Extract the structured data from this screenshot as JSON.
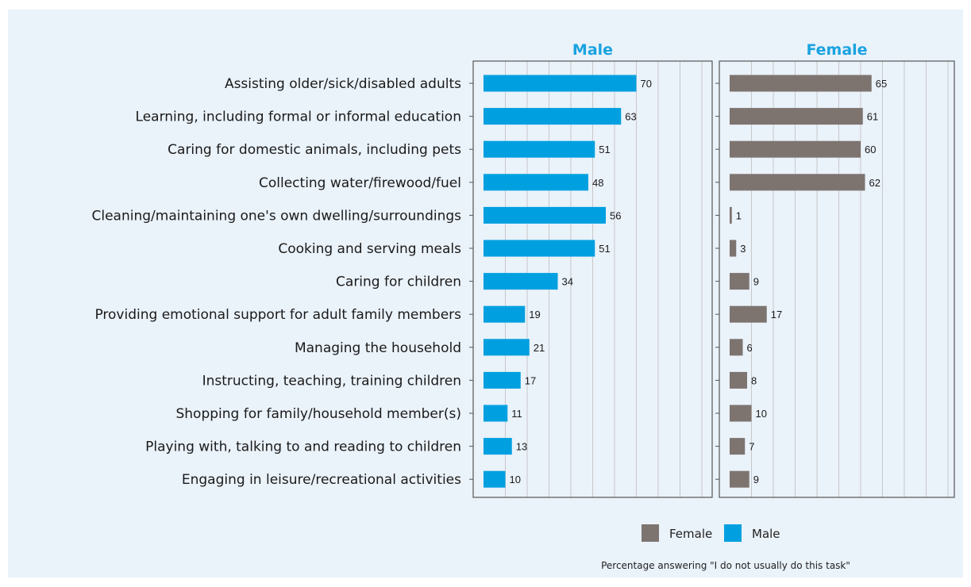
{
  "colors": {
    "background": "#eaf2fa",
    "male": "#00a0e0",
    "female": "#7d7470",
    "title": "#1aa3e0",
    "frame": "#555555",
    "grid": "#c8c8c8"
  },
  "chart_data": {
    "type": "bar",
    "orientation": "horizontal",
    "categories": [
      "Assisting older/sick/disabled adults",
      "Learning, including formal or informal education",
      "Caring for domestic animals, including pets",
      "Collecting water/firewood/fuel",
      "Cleaning/maintaining one's own dwelling/surroundings",
      "Cooking and serving meals",
      "Caring for children",
      "Providing emotional support for adult family members",
      "Managing the household",
      "Instructing, teaching, training children",
      "Shopping for family/household member(s)",
      "Playing with, talking to and reading to children",
      "Engaging in leisure/recreational activities"
    ],
    "series": [
      {
        "name": "Male",
        "values": [
          70,
          63,
          51,
          48,
          56,
          51,
          34,
          19,
          21,
          17,
          11,
          13,
          10
        ]
      },
      {
        "name": "Female",
        "values": [
          65,
          61,
          60,
          62,
          1,
          3,
          9,
          17,
          6,
          8,
          10,
          7,
          9
        ]
      }
    ],
    "panels": [
      "Male",
      "Female"
    ],
    "legend": [
      "Female",
      "Male"
    ],
    "legend_position": "bottom-right",
    "caption": "Percentage answering \"I do not usually do this task\"",
    "xlim": [
      0,
      100
    ],
    "grid": true
  }
}
